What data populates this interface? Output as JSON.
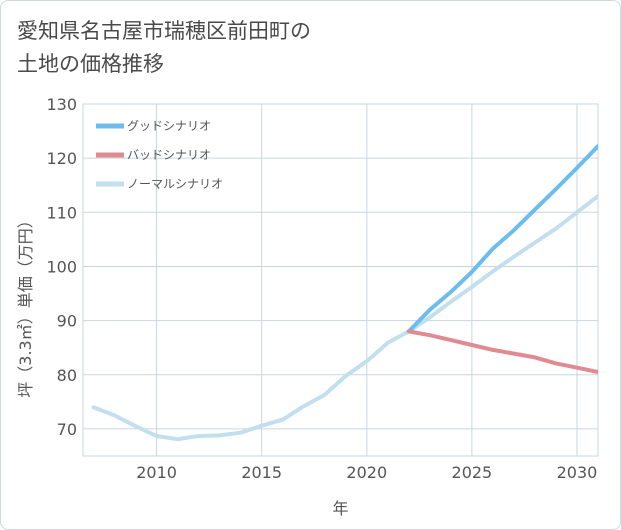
{
  "title_lines": [
    "愛知県名古屋市瑞穂区前田町の",
    "土地の価格推移"
  ],
  "chart_data": {
    "type": "line",
    "xlabel": "年",
    "ylabel": "坪（3.3㎡）単価（万円）",
    "xlim": [
      2006.5,
      2031
    ],
    "ylim": [
      65,
      130
    ],
    "x_ticks": [
      2010,
      2015,
      2020,
      2025,
      2030
    ],
    "y_ticks": [
      70,
      80,
      90,
      100,
      110,
      120,
      130
    ],
    "grid": true,
    "legend_position": "top-left",
    "series": [
      {
        "name": "ノーマルシナリオ",
        "color": "#c2dfee",
        "x": [
          2007,
          2008,
          2009,
          2010,
          2011,
          2012,
          2013,
          2014,
          2015,
          2016,
          2017,
          2018,
          2019,
          2020,
          2021,
          2022,
          2023,
          2024,
          2025,
          2026,
          2027,
          2028,
          2029,
          2030,
          2031
        ],
        "values": [
          74.0,
          72.5,
          70.5,
          68.7,
          68.1,
          68.7,
          68.8,
          69.3,
          70.6,
          71.7,
          74.2,
          76.3,
          79.8,
          82.5,
          85.9,
          88.0,
          90.6,
          93.5,
          96.2,
          99.1,
          101.8,
          104.4,
          107.0,
          110.0,
          113.0
        ]
      },
      {
        "name": "グッドシナリオ",
        "color": "#6cbcf0",
        "x": [
          2022,
          2023,
          2024,
          2025,
          2026,
          2027,
          2028,
          2029,
          2030,
          2031
        ],
        "values": [
          88.0,
          92.0,
          95.3,
          99.0,
          103.3,
          106.7,
          110.5,
          114.3,
          118.2,
          122.2
        ]
      },
      {
        "name": "バッドシナリオ",
        "color": "#e08a92",
        "x": [
          2022,
          2023,
          2024,
          2025,
          2026,
          2027,
          2028,
          2029,
          2030,
          2031
        ],
        "values": [
          88.0,
          87.3,
          86.4,
          85.5,
          84.6,
          83.9,
          83.2,
          82.1,
          81.3,
          80.5
        ]
      }
    ],
    "legend_order": [
      "グッドシナリオ",
      "バッドシナリオ",
      "ノーマルシナリオ"
    ]
  }
}
